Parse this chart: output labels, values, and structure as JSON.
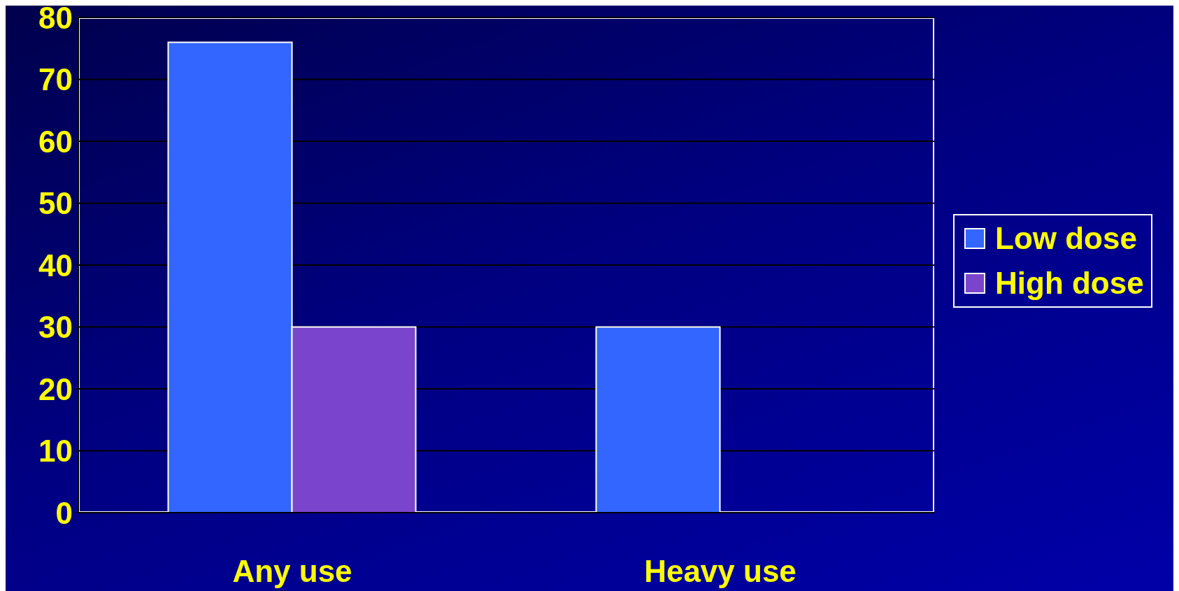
{
  "chart_data": {
    "type": "bar",
    "categories": [
      "Any use",
      "Heavy use"
    ],
    "series": [
      {
        "name": "Low dose",
        "color": "#3366ff",
        "values": [
          76,
          30
        ]
      },
      {
        "name": "High dose",
        "color": "#7b44cc",
        "values": [
          30,
          0
        ]
      }
    ],
    "ylim": [
      0,
      80
    ],
    "yticks": [
      0,
      10,
      20,
      30,
      40,
      50,
      60,
      70,
      80
    ],
    "grid": "y",
    "legend": "right"
  }
}
